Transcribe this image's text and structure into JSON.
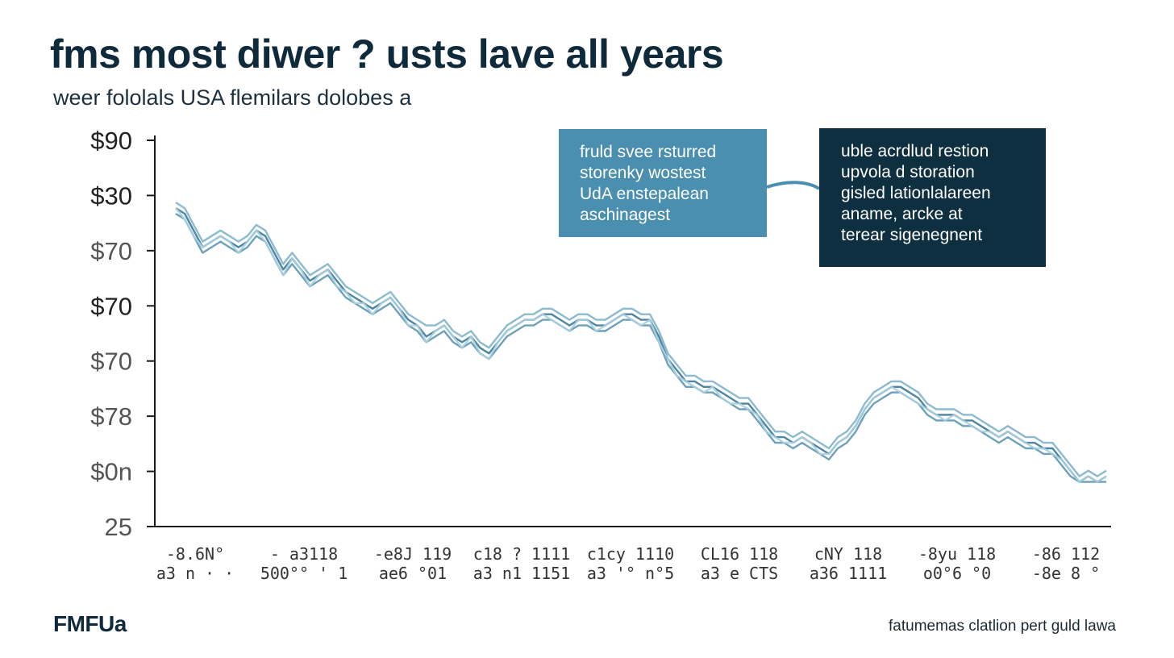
{
  "title": "fms most diwer ? usts lave all years",
  "subtitle": "weer fololals USA flemilars dolobes a",
  "annotations": [
    {
      "lines": [
        "fruld svee rsturred",
        "storenky wostest",
        "UdA enstepalean",
        "aschinagest"
      ],
      "color": "#4a8fb0"
    },
    {
      "lines": [
        "uble acrdlud restion",
        "upvola d storation",
        "gisled lationlalareen",
        "aname, arcke at",
        "terear sigenegnent"
      ],
      "color": "#0e2f3f"
    }
  ],
  "footer": {
    "logo": "FMFUa",
    "source": "fatumemas clatlion pert guld lawa"
  },
  "colors": {
    "axis": "#1a1a1a",
    "series": [
      "#7fb3c9",
      "#3d7896",
      "#5d97b3",
      "#a8cfdf"
    ],
    "connector": "#4a8fb0"
  },
  "chart_data": {
    "type": "line",
    "ytick_labels": [
      "$90",
      "$30",
      "$70",
      "$70",
      "$70",
      "$78",
      "$0n",
      "25"
    ],
    "xtick_labels": [
      [
        "-8.6N°",
        "a3 n · ·"
      ],
      [
        "- a3118",
        "500°° ' 1"
      ],
      [
        "-e8J 119",
        "ae6 °01"
      ],
      [
        "c18 ? 1111",
        "a3 n1 1151"
      ],
      [
        "c1cy 1110",
        "a3 '° n°5"
      ],
      [
        "CL16 118",
        "a3 e CTS"
      ],
      [
        "cNY 118",
        "a36 1111"
      ],
      [
        "-8yu 118",
        "o0°6 °0"
      ],
      [
        "-86 112",
        "-8e 8 °"
      ]
    ],
    "x_steps": 104,
    "series": [
      {
        "values": [
          83,
          82,
          79,
          76,
          77,
          78,
          77,
          76,
          77,
          79,
          78,
          75,
          72,
          74,
          72,
          70,
          71,
          72,
          70,
          68,
          67,
          66,
          65,
          66,
          67,
          65,
          63,
          62,
          61,
          61,
          62,
          60,
          59,
          60,
          58,
          57,
          59,
          61,
          62,
          63,
          63,
          64,
          64,
          63,
          62,
          63,
          63,
          62,
          62,
          63,
          64,
          64,
          63,
          63,
          60,
          56,
          54,
          52,
          52,
          51,
          51,
          50,
          49,
          48,
          48,
          46,
          44,
          42,
          42,
          41,
          42,
          41,
          40,
          39,
          41,
          42,
          44,
          47,
          49,
          50,
          51,
          51,
          50,
          49,
          47,
          46,
          46,
          46,
          45,
          45,
          44,
          43,
          42,
          43,
          42,
          41,
          41,
          40,
          40,
          38,
          36,
          34,
          35,
          34,
          35
        ]
      },
      {
        "values": [
          82,
          81,
          78,
          75,
          76,
          77,
          76,
          75,
          76,
          78,
          77,
          74,
          71,
          73,
          71,
          69,
          70,
          71,
          69,
          67,
          66,
          65,
          64,
          65,
          66,
          64,
          62,
          61,
          59,
          60,
          61,
          59,
          58,
          59,
          57,
          56,
          58,
          60,
          61,
          62,
          62,
          63,
          63,
          62,
          61,
          62,
          62,
          61,
          61,
          62,
          63,
          63,
          62,
          62,
          59,
          55,
          53,
          51,
          51,
          50,
          50,
          49,
          48,
          47,
          47,
          45,
          43,
          41,
          41,
          40,
          41,
          40,
          39,
          38,
          40,
          41,
          43,
          46,
          48,
          49,
          50,
          50,
          49,
          48,
          46,
          45,
          45,
          45,
          44,
          44,
          43,
          42,
          41,
          42,
          41,
          40,
          40,
          39,
          39,
          37,
          35,
          33,
          34,
          33,
          34
        ]
      },
      {
        "values": [
          81,
          80,
          77,
          74,
          75,
          76,
          75,
          74,
          75,
          77,
          76,
          73,
          70,
          72,
          70,
          68,
          69,
          70,
          68,
          66,
          65,
          64,
          63,
          64,
          65,
          63,
          61,
          60,
          58,
          59,
          60,
          58,
          57,
          58,
          56,
          55,
          57,
          59,
          60,
          61,
          61,
          62,
          62,
          61,
          60,
          61,
          61,
          60,
          60,
          61,
          62,
          62,
          61,
          61,
          58,
          54,
          52,
          50,
          50,
          49,
          49,
          48,
          47,
          46,
          46,
          44,
          42,
          40,
          40,
          39,
          40,
          39,
          38,
          37,
          39,
          40,
          42,
          45,
          47,
          48,
          49,
          49,
          48,
          47,
          45,
          44,
          44,
          44,
          43,
          43,
          42,
          41,
          40,
          41,
          40,
          39,
          39,
          38,
          38,
          36,
          34,
          33,
          33,
          33,
          33
        ]
      },
      {
        "values": [
          82,
          80,
          77,
          75,
          76,
          77,
          76,
          74,
          76,
          78,
          76,
          73,
          70,
          73,
          71,
          68,
          70,
          71,
          68,
          67,
          65,
          65,
          63,
          65,
          66,
          64,
          61,
          61,
          58,
          60,
          61,
          59,
          57,
          59,
          56,
          55,
          58,
          60,
          61,
          62,
          62,
          63,
          62,
          61,
          60,
          62,
          62,
          60,
          61,
          62,
          63,
          62,
          61,
          62,
          58,
          55,
          52,
          51,
          50,
          49,
          50,
          48,
          47,
          47,
          46,
          45,
          42,
          41,
          40,
          40,
          41,
          40,
          38,
          38,
          40,
          41,
          43,
          46,
          48,
          49,
          50,
          49,
          48,
          47,
          46,
          45,
          44,
          45,
          44,
          43,
          42,
          42,
          41,
          42,
          41,
          40,
          39,
          39,
          38,
          37,
          35,
          33,
          34,
          33,
          34
        ]
      }
    ],
    "ylim": [
      25,
      95
    ]
  }
}
